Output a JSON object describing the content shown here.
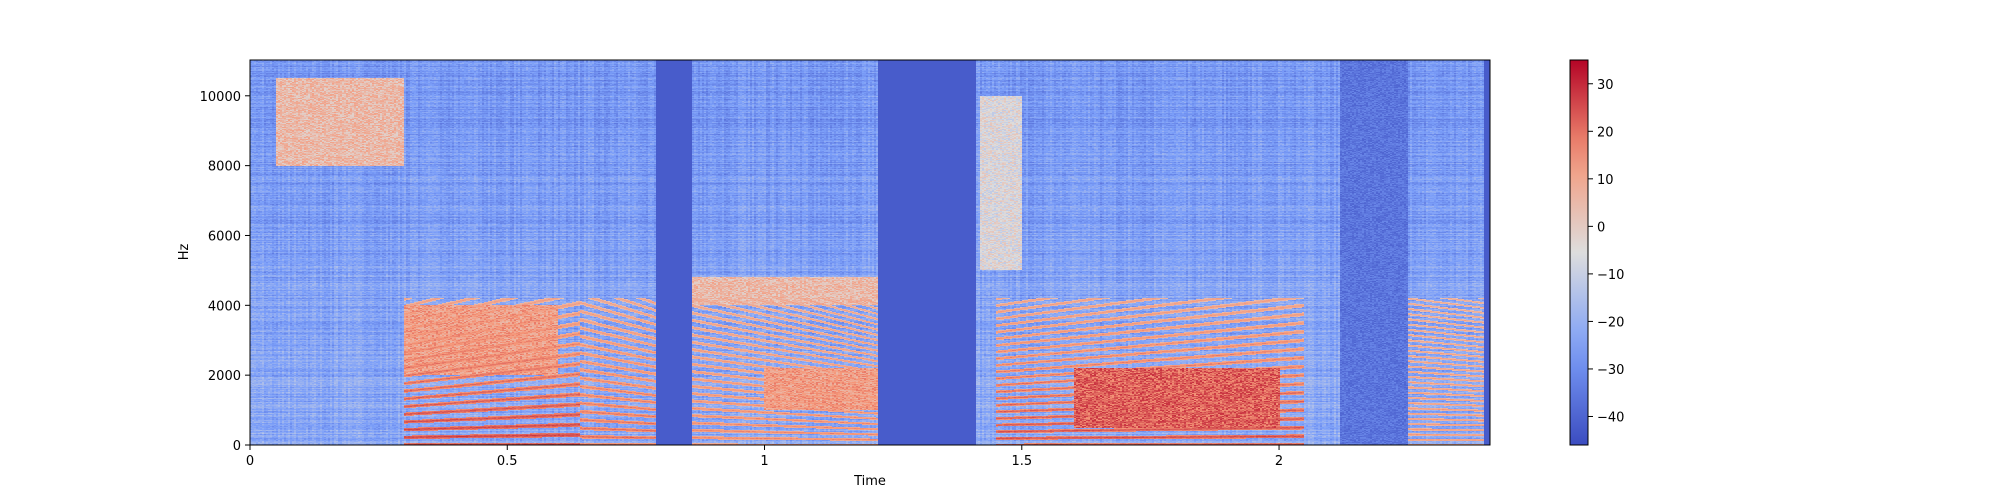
{
  "chart_data": {
    "type": "heatmap",
    "subtype": "spectrogram",
    "title": "",
    "xlabel": "Time",
    "ylabel": "Hz",
    "xlim": [
      0,
      2.41
    ],
    "ylim": [
      0,
      11025
    ],
    "x_ticks": [
      {
        "value": 0,
        "label": "0"
      },
      {
        "value": 0.5,
        "label": "0.5"
      },
      {
        "value": 1,
        "label": "1"
      },
      {
        "value": 1.5,
        "label": "1.5"
      },
      {
        "value": 2,
        "label": "2"
      }
    ],
    "y_ticks": [
      {
        "value": 0,
        "label": "0"
      },
      {
        "value": 2000,
        "label": "2000"
      },
      {
        "value": 4000,
        "label": "4000"
      },
      {
        "value": 6000,
        "label": "6000"
      },
      {
        "value": 8000,
        "label": "8000"
      },
      {
        "value": 10000,
        "label": "10000"
      }
    ],
    "colormap": "coolwarm",
    "colorbar": {
      "range": [
        -46,
        35
      ],
      "ticks": [
        {
          "value": 30,
          "label": "30"
        },
        {
          "value": 20,
          "label": "20"
        },
        {
          "value": 10,
          "label": "10"
        },
        {
          "value": 0,
          "label": "0"
        },
        {
          "value": -10,
          "label": "−10"
        },
        {
          "value": -20,
          "label": "−20"
        },
        {
          "value": -30,
          "label": "−30"
        },
        {
          "value": -40,
          "label": "−40"
        }
      ]
    },
    "grid": false,
    "background_level_db": -42,
    "silent_gaps_s": [
      [
        0.79,
        0.86
      ],
      [
        1.22,
        1.41
      ]
    ],
    "harmonic_segments": [
      {
        "t": [
          0.3,
          0.64
        ],
        "f0_hz": [
          220,
          290
        ],
        "level_db": 18
      },
      {
        "t": [
          0.64,
          0.8
        ],
        "f0_hz": [
          240,
          200
        ],
        "level_db": 12
      },
      {
        "t": [
          0.86,
          1.22
        ],
        "f0_hz": [
          210,
          150
        ],
        "level_db": 8
      },
      {
        "t": [
          1.45,
          2.05
        ],
        "f0_hz": [
          190,
          250
        ],
        "level_db": 16
      },
      {
        "t": [
          2.25,
          2.4
        ],
        "f0_hz": [
          150,
          140
        ],
        "level_db": 5
      }
    ],
    "hot_regions": [
      {
        "t": [
          0.05,
          0.3
        ],
        "f_hz": [
          8000,
          10500
        ],
        "level_db": 8
      },
      {
        "t": [
          0.3,
          0.6
        ],
        "f_hz": [
          2000,
          4000
        ],
        "level_db": 15
      },
      {
        "t": [
          0.86,
          1.22
        ],
        "f_hz": [
          4000,
          4800
        ],
        "level_db": 8
      },
      {
        "t": [
          1.0,
          1.22
        ],
        "f_hz": [
          1000,
          2200
        ],
        "level_db": 15
      },
      {
        "t": [
          1.6,
          2.0
        ],
        "f_hz": [
          500,
          2200
        ],
        "level_db": 25
      },
      {
        "t": [
          1.42,
          1.5
        ],
        "f_hz": [
          5000,
          10000
        ],
        "level_db": -2
      }
    ]
  }
}
